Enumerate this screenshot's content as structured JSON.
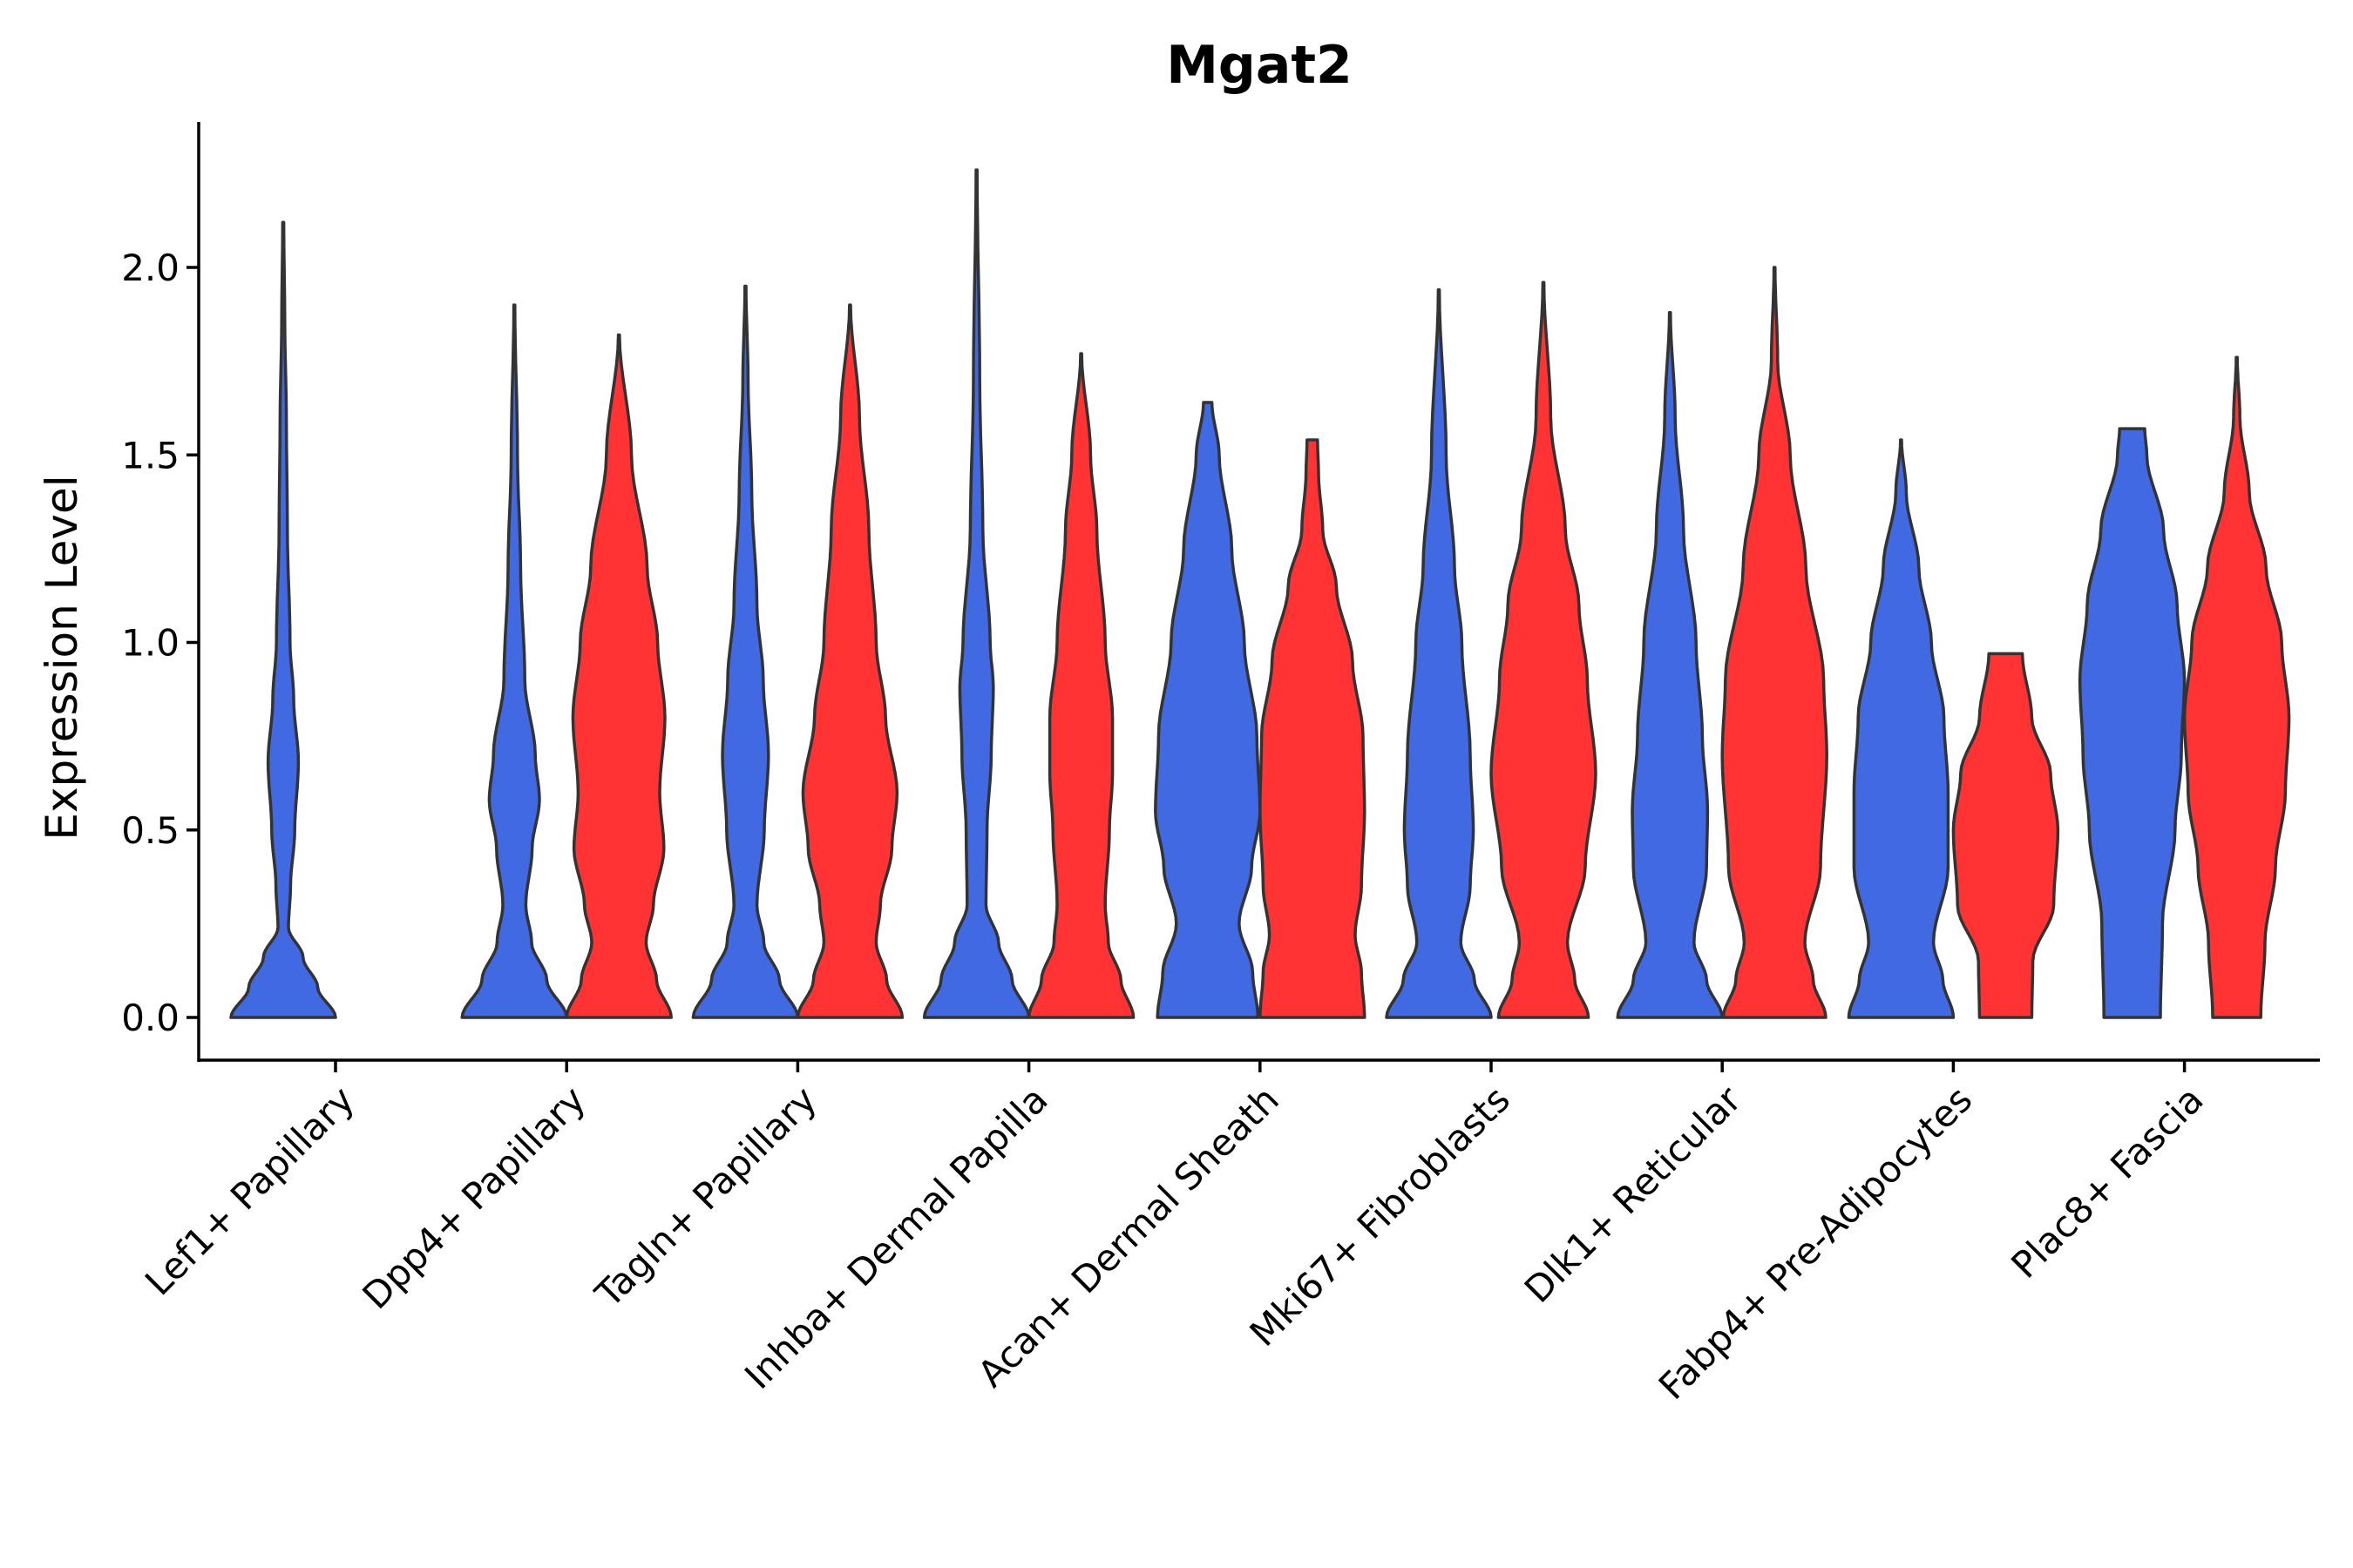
{
  "chart_data": {
    "type": "violin",
    "title": "Mgat2",
    "xlabel": "",
    "ylabel": "Expression Level",
    "ylim": [
      -0.12,
      2.38
    ],
    "yticks": [
      0.0,
      0.5,
      1.0,
      1.5,
      2.0
    ],
    "ytick_labels": [
      "0.0",
      "0.5",
      "1.0",
      "1.5",
      "2.0"
    ],
    "categories": [
      "Lef1+ Papillary",
      "Dpp4+ Papillary",
      "Tagln+ Papillary",
      "Inhba+ Dermal Papilla",
      "Acan+ Dermal Sheath",
      "Mki67+ Fibroblasts",
      "Dlk1+ Reticular",
      "Fabp4+ Pre-Adipocytes",
      "Plac8+ Fascia"
    ],
    "colors": {
      "blue": "#4169E1",
      "red": "#FF3333"
    },
    "series": [
      {
        "name": "blue",
        "color": "#4169E1"
      },
      {
        "name": "red",
        "color": "#FF3333"
      }
    ],
    "violins": [
      {
        "category": "Lef1+ Papillary",
        "series": "blue",
        "max": 2.12,
        "profile": [
          [
            0.0,
            1.0
          ],
          [
            0.08,
            0.66
          ],
          [
            0.16,
            0.38
          ],
          [
            0.24,
            0.1
          ],
          [
            0.35,
            0.14
          ],
          [
            0.5,
            0.22
          ],
          [
            0.68,
            0.29
          ],
          [
            0.85,
            0.2
          ],
          [
            1.0,
            0.13
          ],
          [
            1.3,
            0.08
          ],
          [
            1.6,
            0.06
          ],
          [
            1.85,
            0.03
          ],
          [
            2.12,
            0.01
          ]
        ]
      },
      {
        "category": "Dpp4+ Papillary",
        "series": "blue",
        "max": 1.9,
        "profile": [
          [
            0.0,
            1.0
          ],
          [
            0.1,
            0.62
          ],
          [
            0.2,
            0.33
          ],
          [
            0.3,
            0.22
          ],
          [
            0.45,
            0.34
          ],
          [
            0.58,
            0.48
          ],
          [
            0.7,
            0.4
          ],
          [
            0.9,
            0.2
          ],
          [
            1.2,
            0.12
          ],
          [
            1.5,
            0.06
          ],
          [
            1.9,
            0.01
          ]
        ]
      },
      {
        "category": "Dpp4+ Papillary",
        "series": "red",
        "max": 1.82,
        "profile": [
          [
            0.0,
            1.0
          ],
          [
            0.1,
            0.72
          ],
          [
            0.2,
            0.52
          ],
          [
            0.3,
            0.66
          ],
          [
            0.45,
            0.86
          ],
          [
            0.6,
            0.78
          ],
          [
            0.8,
            0.88
          ],
          [
            1.0,
            0.74
          ],
          [
            1.2,
            0.54
          ],
          [
            1.5,
            0.24
          ],
          [
            1.82,
            0.01
          ]
        ]
      },
      {
        "category": "Tagln+ Papillary",
        "series": "blue",
        "max": 1.95,
        "profile": [
          [
            0.0,
            1.0
          ],
          [
            0.1,
            0.65
          ],
          [
            0.2,
            0.35
          ],
          [
            0.3,
            0.22
          ],
          [
            0.5,
            0.36
          ],
          [
            0.7,
            0.44
          ],
          [
            0.9,
            0.34
          ],
          [
            1.1,
            0.22
          ],
          [
            1.4,
            0.12
          ],
          [
            1.7,
            0.05
          ],
          [
            1.95,
            0.01
          ]
        ]
      },
      {
        "category": "Tagln+ Papillary",
        "series": "red",
        "max": 1.9,
        "profile": [
          [
            0.0,
            1.0
          ],
          [
            0.1,
            0.7
          ],
          [
            0.2,
            0.5
          ],
          [
            0.3,
            0.58
          ],
          [
            0.45,
            0.8
          ],
          [
            0.6,
            0.9
          ],
          [
            0.8,
            0.68
          ],
          [
            1.0,
            0.5
          ],
          [
            1.3,
            0.36
          ],
          [
            1.6,
            0.18
          ],
          [
            1.9,
            0.01
          ]
        ]
      },
      {
        "category": "Inhba+ Dermal Papilla",
        "series": "blue",
        "max": 2.26,
        "profile": [
          [
            0.0,
            1.0
          ],
          [
            0.1,
            0.68
          ],
          [
            0.2,
            0.42
          ],
          [
            0.3,
            0.18
          ],
          [
            0.5,
            0.2
          ],
          [
            0.7,
            0.28
          ],
          [
            0.88,
            0.32
          ],
          [
            1.0,
            0.26
          ],
          [
            1.3,
            0.12
          ],
          [
            1.7,
            0.06
          ],
          [
            2.26,
            0.01
          ]
        ]
      },
      {
        "category": "Inhba+ Dermal Papilla",
        "series": "red",
        "max": 1.77,
        "profile": [
          [
            0.0,
            1.0
          ],
          [
            0.1,
            0.76
          ],
          [
            0.2,
            0.52
          ],
          [
            0.3,
            0.46
          ],
          [
            0.5,
            0.54
          ],
          [
            0.65,
            0.6
          ],
          [
            0.8,
            0.6
          ],
          [
            1.0,
            0.46
          ],
          [
            1.3,
            0.3
          ],
          [
            1.5,
            0.18
          ],
          [
            1.77,
            0.01
          ]
        ]
      },
      {
        "category": "Acan+ Dermal Sheath",
        "series": "blue",
        "max": 1.64,
        "profile": [
          [
            0.0,
            0.96
          ],
          [
            0.12,
            0.86
          ],
          [
            0.25,
            0.6
          ],
          [
            0.4,
            0.84
          ],
          [
            0.55,
            1.0
          ],
          [
            0.75,
            0.94
          ],
          [
            1.0,
            0.7
          ],
          [
            1.25,
            0.46
          ],
          [
            1.5,
            0.22
          ],
          [
            1.64,
            0.08
          ]
        ]
      },
      {
        "category": "Acan+ Dermal Sheath",
        "series": "red",
        "max": 1.54,
        "profile": [
          [
            0.0,
            1.0
          ],
          [
            0.12,
            0.94
          ],
          [
            0.22,
            0.82
          ],
          [
            0.35,
            0.94
          ],
          [
            0.55,
            1.0
          ],
          [
            0.75,
            0.97
          ],
          [
            0.95,
            0.77
          ],
          [
            1.15,
            0.46
          ],
          [
            1.3,
            0.2
          ],
          [
            1.45,
            0.12
          ],
          [
            1.54,
            0.1
          ]
        ]
      },
      {
        "category": "Mki67+ Fibroblasts",
        "series": "blue",
        "max": 1.94,
        "profile": [
          [
            0.0,
            1.0
          ],
          [
            0.1,
            0.68
          ],
          [
            0.2,
            0.42
          ],
          [
            0.35,
            0.6
          ],
          [
            0.5,
            0.66
          ],
          [
            0.7,
            0.6
          ],
          [
            1.0,
            0.44
          ],
          [
            1.2,
            0.3
          ],
          [
            1.5,
            0.14
          ],
          [
            1.94,
            0.01
          ]
        ]
      },
      {
        "category": "Mki67+ Fibroblasts",
        "series": "red",
        "max": 1.96,
        "profile": [
          [
            0.0,
            0.86
          ],
          [
            0.1,
            0.6
          ],
          [
            0.2,
            0.46
          ],
          [
            0.4,
            0.8
          ],
          [
            0.65,
            1.0
          ],
          [
            0.9,
            0.84
          ],
          [
            1.1,
            0.68
          ],
          [
            1.3,
            0.42
          ],
          [
            1.6,
            0.14
          ],
          [
            1.96,
            0.01
          ]
        ]
      },
      {
        "category": "Dlk1+ Reticular",
        "series": "blue",
        "max": 1.88,
        "profile": [
          [
            0.0,
            1.0
          ],
          [
            0.1,
            0.7
          ],
          [
            0.2,
            0.46
          ],
          [
            0.4,
            0.7
          ],
          [
            0.55,
            0.72
          ],
          [
            0.75,
            0.62
          ],
          [
            1.0,
            0.5
          ],
          [
            1.3,
            0.26
          ],
          [
            1.6,
            0.1
          ],
          [
            1.88,
            0.01
          ]
        ]
      },
      {
        "category": "Dlk1+ Reticular",
        "series": "red",
        "max": 2.0,
        "profile": [
          [
            0.0,
            0.98
          ],
          [
            0.1,
            0.74
          ],
          [
            0.2,
            0.58
          ],
          [
            0.4,
            0.88
          ],
          [
            0.7,
            1.0
          ],
          [
            0.9,
            0.94
          ],
          [
            1.2,
            0.6
          ],
          [
            1.5,
            0.3
          ],
          [
            1.75,
            0.06
          ],
          [
            2.0,
            0.01
          ]
        ]
      },
      {
        "category": "Fabp4+ Pre-Adipocytes",
        "series": "blue",
        "max": 1.54,
        "profile": [
          [
            0.0,
            1.0
          ],
          [
            0.1,
            0.8
          ],
          [
            0.2,
            0.62
          ],
          [
            0.4,
            0.9
          ],
          [
            0.6,
            0.9
          ],
          [
            0.8,
            0.82
          ],
          [
            1.0,
            0.58
          ],
          [
            1.2,
            0.34
          ],
          [
            1.4,
            0.1
          ],
          [
            1.54,
            0.01
          ]
        ]
      },
      {
        "category": "Fabp4+ Pre-Adipocytes",
        "series": "red",
        "max": 0.97,
        "profile": [
          [
            0.0,
            0.5
          ],
          [
            0.15,
            0.52
          ],
          [
            0.3,
            0.92
          ],
          [
            0.5,
            1.0
          ],
          [
            0.65,
            0.86
          ],
          [
            0.8,
            0.5
          ],
          [
            0.97,
            0.32
          ]
        ]
      },
      {
        "category": "Plac8+ Fascia",
        "series": "blue",
        "max": 1.57,
        "profile": [
          [
            0.0,
            0.54
          ],
          [
            0.25,
            0.58
          ],
          [
            0.5,
            0.82
          ],
          [
            0.7,
            0.94
          ],
          [
            0.9,
            1.0
          ],
          [
            1.1,
            0.86
          ],
          [
            1.3,
            0.6
          ],
          [
            1.5,
            0.28
          ],
          [
            1.57,
            0.24
          ]
        ]
      },
      {
        "category": "Plac8+ Fascia",
        "series": "red",
        "max": 1.76,
        "profile": [
          [
            0.0,
            0.46
          ],
          [
            0.2,
            0.54
          ],
          [
            0.4,
            0.74
          ],
          [
            0.6,
            0.93
          ],
          [
            0.8,
            1.0
          ],
          [
            1.0,
            0.86
          ],
          [
            1.2,
            0.56
          ],
          [
            1.4,
            0.24
          ],
          [
            1.6,
            0.06
          ],
          [
            1.76,
            0.01
          ]
        ]
      }
    ]
  }
}
